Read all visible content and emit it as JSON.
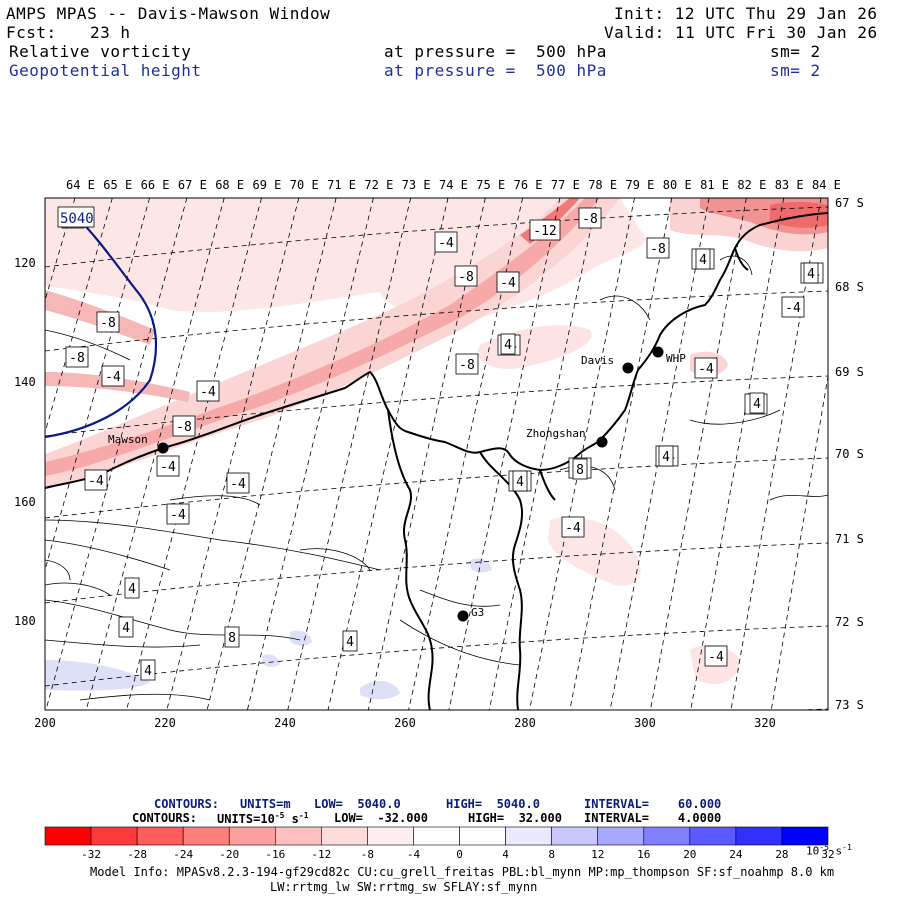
{
  "header": {
    "title": "AMPS MPAS -- Davis-Mawson Window",
    "init": "Init: 12 UTC Thu 29 Jan 26",
    "fcst_label": "Fcst:",
    "fcst_value": "23 h",
    "valid": "Valid: 11 UTC Fri 30 Jan 26",
    "field1_name": "Relative vorticity",
    "field1_level": "at pressure =  500 hPa",
    "field1_sm": "sm= 2",
    "field2_name": "Geopotential height",
    "field2_level": "at pressure =  500 hPa",
    "field2_sm": "sm= 2"
  },
  "map": {
    "top_lon_labels": [
      "64 E",
      "65 E",
      "66 E",
      "67 E",
      "68 E",
      "69 E",
      "70 E",
      "71 E",
      "72 E",
      "73 E",
      "74 E",
      "75 E",
      "76 E",
      "77 E",
      "78 E",
      "79 E",
      "80 E",
      "81 E",
      "82 E",
      "83 E",
      "84 E"
    ],
    "right_lat_labels": [
      "67 S",
      "68 S",
      "69 S",
      "70 S",
      "71 S",
      "72 S",
      "73 S"
    ],
    "left_y_labels": [
      "120",
      "140",
      "160",
      "180"
    ],
    "bottom_x_labels": [
      "200",
      "220",
      "240",
      "260",
      "280",
      "300",
      "320"
    ],
    "stations": [
      {
        "name": "Mawson"
      },
      {
        "name": "Davis"
      },
      {
        "name": "WHP"
      },
      {
        "name": "Zhongshan"
      },
      {
        "name": "G3"
      }
    ],
    "height_contour_label": "5040",
    "vorticity_labels": [
      "-4",
      "-8",
      "-12",
      "-8",
      "-4",
      "-8",
      "-4",
      "-8",
      "-4",
      "-8",
      "-4",
      "-4",
      "-4",
      "-4",
      "-4",
      "-8",
      "-4",
      "-8",
      "-4",
      "-4",
      "-4",
      "-4",
      "-4",
      "-4",
      "-4",
      "-4",
      "-4",
      "-4",
      "4",
      "4",
      "4",
      "4",
      "8",
      "4",
      "4",
      "8",
      "4",
      "4",
      "4",
      "4"
    ],
    "colors": {
      "neg_strong": "#f03c3c",
      "neg_mid": "#f59a9a",
      "neg_light": "#fad9d9",
      "pos_light": "#dde0f7",
      "coast": "#000000",
      "height_contour": "#0a1a86"
    }
  },
  "footer": {
    "contours1_label": "CONTOURS:",
    "contours1_units": "UNITS=m",
    "contours1_low": "LOW=  5040.0",
    "contours1_high": "HIGH=  5040.0",
    "contours1_interval": "INTERVAL=    60.000",
    "contours2_label": "CONTOURS:",
    "contours2_units": "UNITS=10",
    "contours2_units_exp": "-5",
    "contours2_units_tail": " s",
    "contours2_units_exp2": "-1",
    "contours2_low": "LOW=  -32.000",
    "contours2_high": "HIGH=  32.000",
    "contours2_interval": "INTERVAL=    4.0000",
    "colorbar_values": [
      "-32",
      "-28",
      "-24",
      "-20",
      "-16",
      "-12",
      "-8",
      "-4",
      "0",
      "4",
      "8",
      "12",
      "16",
      "20",
      "24",
      "28",
      "32"
    ],
    "colorbar_colors": [
      "#ff0000",
      "#ff3a3a",
      "#ff5c5c",
      "#ff7e7e",
      "#ffa0a0",
      "#ffc0c0",
      "#ffdcdc",
      "#ffefef",
      "#ffffff",
      "#ffffff",
      "#eaeaff",
      "#c8c8ff",
      "#a8a8ff",
      "#8080ff",
      "#5a5aff",
      "#3030ff",
      "#0000ff"
    ],
    "colorbar_units": "10",
    "colorbar_units_exp": "-5",
    "colorbar_units_tail": " s",
    "colorbar_units_exp2": "-1",
    "model_info": "Model Info: MPASv8.2.3-194-gf29cd82c CU:cu_grell_freitas PBL:bl_mynn MP:mp_thompson SF:sf_noahmp 8.0 km",
    "model_info2": "LW:rrtmg_lw SW:rrtmg_sw SFLAY:sf_mynn"
  }
}
